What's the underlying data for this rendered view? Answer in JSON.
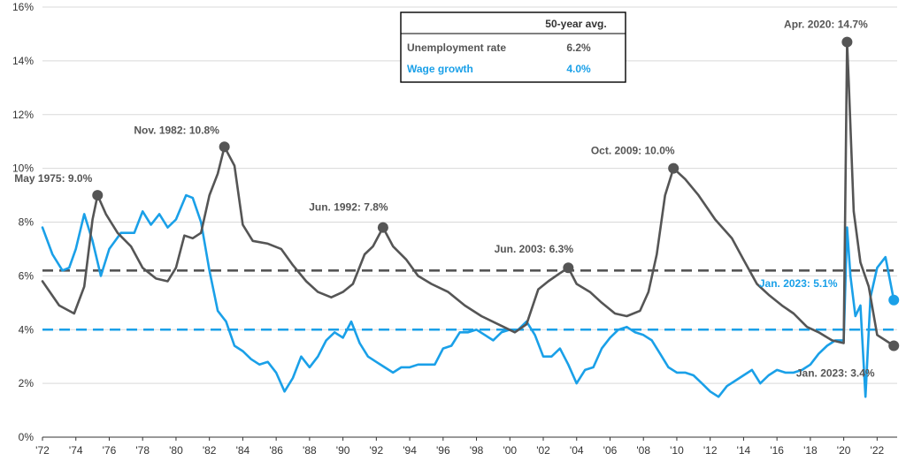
{
  "chart_data": {
    "type": "line",
    "xlim": [
      1972.0,
      2023.2
    ],
    "ylim": [
      0,
      16
    ],
    "x_ticks": [
      1972,
      1974,
      1976,
      1978,
      1980,
      1982,
      1984,
      1986,
      1988,
      1990,
      1992,
      1994,
      1996,
      1998,
      2000,
      2002,
      2004,
      2006,
      2008,
      2010,
      2012,
      2014,
      2016,
      2018,
      2020,
      2022
    ],
    "x_tick_labels": [
      "'72",
      "'74",
      "'76",
      "'78",
      "'80",
      "'82",
      "'84",
      "'86",
      "'88",
      "'90",
      "'92",
      "'94",
      "'96",
      "'98",
      "'00",
      "'02",
      "'04",
      "'06",
      "'08",
      "'10",
      "'12",
      "'14",
      "'16",
      "'18",
      "'20",
      "'22"
    ],
    "y_ticks": [
      0,
      2,
      4,
      6,
      8,
      10,
      12,
      14,
      16
    ],
    "y_tick_labels": [
      "0%",
      "2%",
      "4%",
      "6%",
      "8%",
      "10%",
      "12%",
      "14%",
      "16%"
    ],
    "grid": "horizontal",
    "colors": {
      "unemployment": "#555555",
      "wage": "#1aa0e8"
    },
    "series": [
      {
        "key": "unemployment",
        "name": "Unemployment rate",
        "x": [
          1972.0,
          1973.0,
          1973.9,
          1974.5,
          1975.0,
          1975.3,
          1975.8,
          1976.5,
          1977.3,
          1978.0,
          1978.8,
          1979.5,
          1980.0,
          1980.5,
          1981.0,
          1981.5,
          1982.0,
          1982.5,
          1982.9,
          1983.5,
          1984.0,
          1984.6,
          1985.5,
          1986.3,
          1987.0,
          1987.8,
          1988.5,
          1989.3,
          1990.0,
          1990.6,
          1991.3,
          1991.8,
          1992.4,
          1993.0,
          1993.8,
          1994.5,
          1995.3,
          1996.3,
          1997.3,
          1998.3,
          1999.3,
          2000.3,
          2001.0,
          2001.7,
          2002.3,
          2003.0,
          2003.5,
          2004.0,
          2004.8,
          2005.5,
          2006.3,
          2007.0,
          2007.8,
          2008.3,
          2008.8,
          2009.3,
          2009.8,
          2010.5,
          2011.3,
          2012.3,
          2013.3,
          2014.0,
          2014.8,
          2015.5,
          2016.3,
          2017.0,
          2017.8,
          2018.5,
          2019.3,
          2020.0,
          2020.2,
          2020.3,
          2020.6,
          2021.0,
          2021.5,
          2022.0,
          2022.5,
          2023.0
        ],
        "values": [
          5.8,
          4.9,
          4.6,
          5.6,
          8.1,
          9.0,
          8.3,
          7.6,
          7.1,
          6.3,
          5.9,
          5.8,
          6.3,
          7.5,
          7.4,
          7.6,
          9.0,
          9.8,
          10.8,
          10.1,
          7.9,
          7.3,
          7.2,
          7.0,
          6.4,
          5.8,
          5.4,
          5.2,
          5.4,
          5.7,
          6.8,
          7.1,
          7.8,
          7.1,
          6.6,
          6.0,
          5.7,
          5.4,
          4.9,
          4.5,
          4.2,
          3.9,
          4.2,
          5.5,
          5.8,
          6.1,
          6.3,
          5.7,
          5.4,
          5.0,
          4.6,
          4.5,
          4.7,
          5.4,
          6.8,
          9.0,
          10.0,
          9.6,
          9.0,
          8.1,
          7.4,
          6.6,
          5.7,
          5.3,
          4.9,
          4.6,
          4.1,
          3.9,
          3.6,
          3.5,
          14.7,
          13.2,
          8.4,
          6.5,
          5.6,
          3.8,
          3.6,
          3.4
        ]
      },
      {
        "key": "wage",
        "name": "Wage growth",
        "x": [
          1972.0,
          1972.6,
          1973.2,
          1973.6,
          1974.0,
          1974.5,
          1975.0,
          1975.5,
          1976.0,
          1976.7,
          1977.5,
          1978.0,
          1978.5,
          1979.0,
          1979.5,
          1980.0,
          1980.6,
          1981.0,
          1981.5,
          1982.0,
          1982.5,
          1983.0,
          1983.5,
          1984.0,
          1984.5,
          1985.0,
          1985.5,
          1986.0,
          1986.5,
          1987.0,
          1987.5,
          1988.0,
          1988.5,
          1989.0,
          1989.5,
          1990.0,
          1990.5,
          1991.0,
          1991.5,
          1992.0,
          1992.5,
          1993.0,
          1993.5,
          1994.0,
          1994.5,
          1995.0,
          1995.5,
          1996.0,
          1996.5,
          1997.0,
          1997.5,
          1998.0,
          1998.5,
          1999.0,
          1999.5,
          2000.0,
          2000.5,
          2001.0,
          2001.5,
          2002.0,
          2002.5,
          2003.0,
          2003.5,
          2004.0,
          2004.5,
          2005.0,
          2005.5,
          2006.0,
          2006.5,
          2007.0,
          2007.5,
          2008.0,
          2008.5,
          2009.0,
          2009.5,
          2010.0,
          2010.5,
          2011.0,
          2011.5,
          2012.0,
          2012.5,
          2013.0,
          2013.5,
          2014.0,
          2014.5,
          2015.0,
          2015.5,
          2016.0,
          2016.5,
          2017.0,
          2017.5,
          2018.0,
          2018.5,
          2019.0,
          2019.5,
          2020.0,
          2020.2,
          2020.4,
          2020.7,
          2021.0,
          2021.3,
          2021.6,
          2022.0,
          2022.5,
          2023.0
        ],
        "values": [
          7.8,
          6.8,
          6.2,
          6.3,
          7.0,
          8.3,
          7.3,
          6.0,
          7.0,
          7.6,
          7.6,
          8.4,
          7.9,
          8.3,
          7.8,
          8.1,
          9.0,
          8.9,
          8.0,
          6.2,
          4.7,
          4.3,
          3.4,
          3.2,
          2.9,
          2.7,
          2.8,
          2.4,
          1.7,
          2.2,
          3.0,
          2.6,
          3.0,
          3.6,
          3.9,
          3.7,
          4.3,
          3.5,
          3.0,
          2.8,
          2.6,
          2.4,
          2.6,
          2.6,
          2.7,
          2.7,
          2.7,
          3.3,
          3.4,
          3.9,
          3.9,
          4.0,
          3.8,
          3.6,
          3.9,
          4.0,
          4.0,
          4.3,
          3.8,
          3.0,
          3.0,
          3.3,
          2.7,
          2.0,
          2.5,
          2.6,
          3.3,
          3.7,
          4.0,
          4.1,
          3.9,
          3.8,
          3.6,
          3.1,
          2.6,
          2.4,
          2.4,
          2.3,
          2.0,
          1.7,
          1.5,
          1.9,
          2.1,
          2.3,
          2.5,
          2.0,
          2.3,
          2.5,
          2.4,
          2.4,
          2.5,
          2.7,
          3.1,
          3.4,
          3.6,
          3.6,
          7.8,
          6.0,
          4.5,
          4.9,
          1.5,
          5.2,
          6.3,
          6.7,
          5.1
        ]
      }
    ],
    "reference_lines": [
      {
        "key": "unemployment",
        "value": 6.2
      },
      {
        "key": "wage",
        "value": 4.0
      }
    ],
    "annotations": [
      {
        "series": "unemployment",
        "x": 1975.3,
        "y": 9.0,
        "label": "May 1975: 9.0%",
        "color": "#555555"
      },
      {
        "series": "unemployment",
        "x": 1982.9,
        "y": 10.8,
        "label": "Nov. 1982: 10.8%",
        "color": "#555555"
      },
      {
        "series": "unemployment",
        "x": 1992.4,
        "y": 7.8,
        "label": "Jun. 1992: 7.8%",
        "color": "#555555"
      },
      {
        "series": "unemployment",
        "x": 2003.5,
        "y": 6.3,
        "label": "Jun. 2003: 6.3%",
        "color": "#555555"
      },
      {
        "series": "unemployment",
        "x": 2009.8,
        "y": 10.0,
        "label": "Oct. 2009: 10.0%",
        "color": "#555555"
      },
      {
        "series": "unemployment",
        "x": 2020.2,
        "y": 14.7,
        "label": "Apr. 2020: 14.7%",
        "color": "#555555"
      },
      {
        "series": "wage",
        "x": 2023.0,
        "y": 5.1,
        "label": "Jan. 2023: 5.1%",
        "color": "#1aa0e8"
      },
      {
        "series": "unemployment",
        "x": 2023.0,
        "y": 3.4,
        "label": "Jan. 2023: 3.4%",
        "color": "#555555"
      }
    ]
  },
  "legend": {
    "header": "50-year avg.",
    "rows": [
      {
        "label": "Unemployment rate",
        "value": "6.2%",
        "color": "#555555"
      },
      {
        "label": "Wage growth",
        "value": "4.0%",
        "color": "#1aa0e8"
      }
    ]
  }
}
